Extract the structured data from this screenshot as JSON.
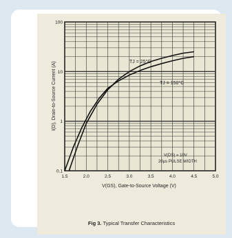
{
  "figure": {
    "caption_label": "Fig 3.",
    "caption_text": "Typical Transfer Characteristics"
  },
  "chart_data": {
    "type": "line",
    "title": "",
    "xlabel": "V(GS), Gate-to-Source Voltage (V)",
    "ylabel": "I(D), Drain-to-Source Current (A)",
    "xlim": [
      1.5,
      5.0
    ],
    "ylim": [
      0.1,
      100
    ],
    "yscale": "log",
    "grid": true,
    "x_ticks": [
      "1.5",
      "2.0",
      "2.5",
      "3.0",
      "3.5",
      "4.0",
      "4.5",
      "5.0"
    ],
    "y_ticks": [
      "0.1",
      "1",
      "10",
      "100"
    ],
    "series": [
      {
        "name": "TJ = 25°C",
        "x": [
          1.6,
          1.8,
          2.0,
          2.25,
          2.5,
          2.75,
          3.0,
          3.25,
          3.5,
          3.75,
          4.0,
          4.25,
          4.5
        ],
        "y": [
          0.1,
          0.32,
          0.9,
          2.2,
          4.3,
          7.0,
          10.0,
          13.0,
          16.0,
          18.5,
          21.0,
          23.5,
          25.0
        ]
      },
      {
        "name": "TJ = 150°C",
        "x": [
          1.5,
          1.7,
          1.9,
          2.1,
          2.3,
          2.5,
          2.75,
          3.0,
          3.25,
          3.5,
          3.75,
          4.0,
          4.25,
          4.5
        ],
        "y": [
          0.1,
          0.3,
          0.75,
          1.6,
          2.9,
          4.6,
          6.5,
          8.5,
          10.5,
          12.5,
          14.5,
          16.5,
          18.5,
          20.0
        ]
      }
    ],
    "annotations": [
      "TJ = 25°C",
      "TJ = 150°C",
      "V(DS) = 10V",
      "20μs PULSE WIDTH"
    ]
  }
}
